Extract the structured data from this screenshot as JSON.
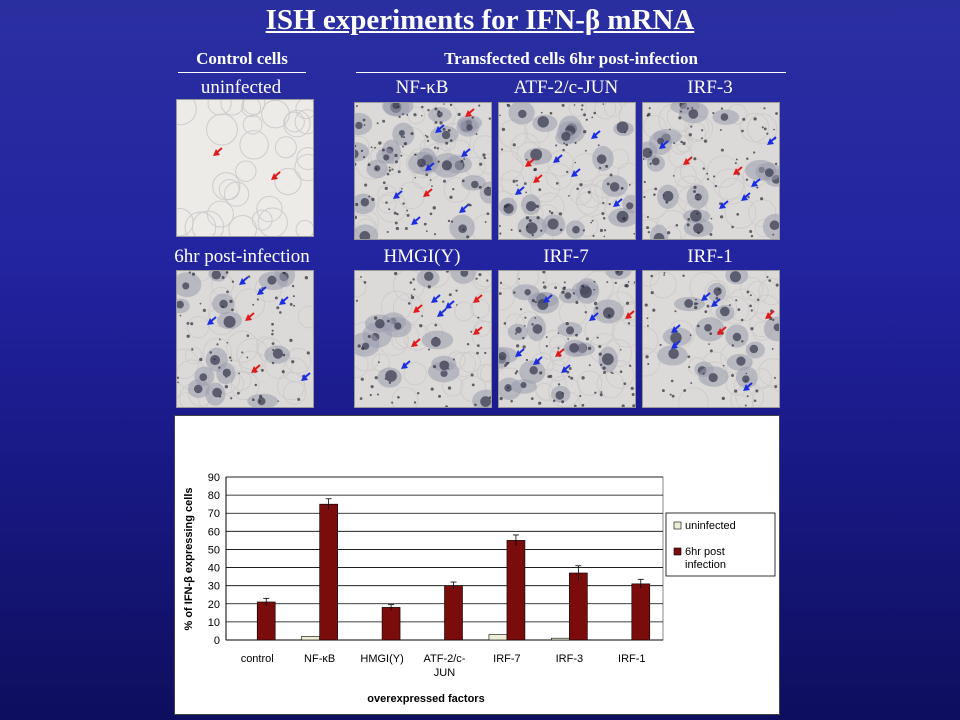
{
  "title": "ISH experiments for IFN-β mRNA",
  "headers": {
    "control": "Control cells",
    "transfected": "Transfected cells 6hr post-infection"
  },
  "panels": {
    "uninfected": "uninfected",
    "postinf": "6hr post-infection",
    "nfkb": "NF-κB",
    "atf": "ATF-2/c-JUN",
    "irf3": "IRF-3",
    "hmgi": "HMGI(Y)",
    "irf7": "IRF-7",
    "irf1": "IRF-1"
  },
  "colors": {
    "bar_uninfected": "#eeeed8",
    "bar_infected": "#7a0c0c",
    "arrow_red": "#e01a1a",
    "arrow_blue": "#1a2ee0",
    "plot_bg": "#ffffff"
  },
  "chart_data": {
    "type": "bar",
    "categories": [
      "control",
      "NF-κB",
      "HMGI(Y)",
      "ATF-2/c-JUN",
      "IRF-7",
      "IRF-3",
      "IRF-1"
    ],
    "series": [
      {
        "name": "uninfected",
        "values": [
          0,
          2,
          0,
          0,
          3,
          1,
          0
        ]
      },
      {
        "name": "6hr post infection",
        "values": [
          21,
          75,
          18,
          30,
          55,
          37,
          31
        ],
        "errors": [
          2,
          3,
          1.5,
          2,
          3,
          4,
          2.5
        ]
      }
    ],
    "xlabel": "overexpressed factors",
    "ylabel": "% of IFN-β expressing cells",
    "ylim": [
      0,
      90
    ],
    "yticks": [
      0,
      10,
      20,
      30,
      40,
      50,
      60,
      70,
      80,
      90
    ],
    "grid": true,
    "legend_position": "right"
  }
}
